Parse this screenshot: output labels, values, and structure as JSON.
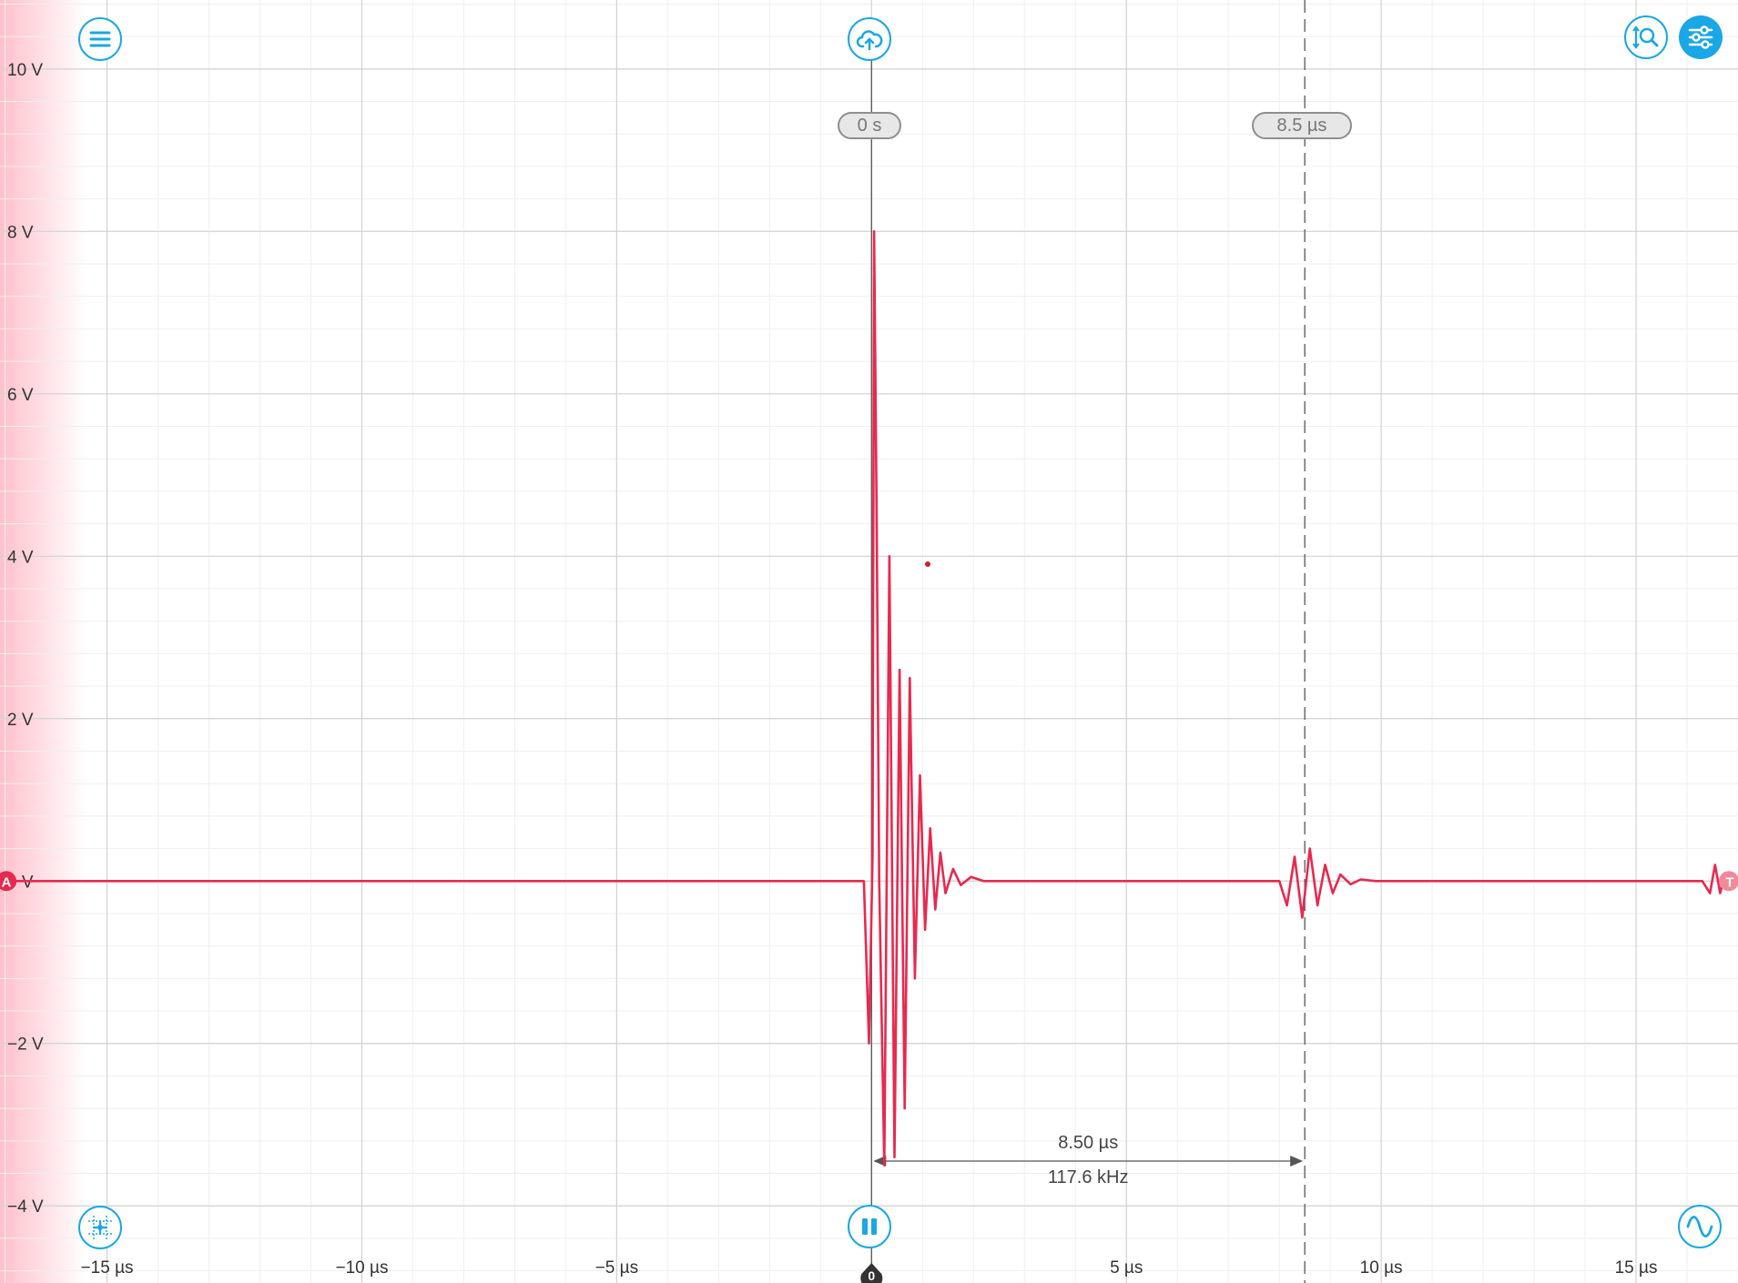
{
  "colors": {
    "accent": "#1aa7e6",
    "trace": "#e8294f",
    "grid_major": "#d2d2d2",
    "grid_minor": "#efefef",
    "label": "#333333"
  },
  "toolbar": {
    "menu_icon": "menu-icon",
    "upload_icon": "cloud-upload-icon",
    "zoom_icon": "vertical-zoom-icon",
    "settings_icon": "sliders-icon",
    "crosshair_icon": "crosshair-icon",
    "pause_icon": "pause-icon",
    "waveform_icon": "sine-wave-icon"
  },
  "cursors": {
    "cursor1_label": "0 s",
    "cursor2_label": "8.5 µs"
  },
  "measurement": {
    "delta_time": "8.50 µs",
    "frequency": "117.6 kHz"
  },
  "markers": {
    "channel_marker": "A",
    "trigger_level_marker": "T",
    "trigger_time_marker": "0"
  },
  "chart_data": {
    "type": "line",
    "y_ticks": [
      {
        "value": 10,
        "label": "10 V"
      },
      {
        "value": 8,
        "label": "8 V"
      },
      {
        "value": 6,
        "label": "6 V"
      },
      {
        "value": 4,
        "label": "4 V"
      },
      {
        "value": 2,
        "label": "2 V"
      },
      {
        "value": 0,
        "label": "0 V"
      },
      {
        "value": -2,
        "label": "−2 V"
      },
      {
        "value": -4,
        "label": "−4 V"
      }
    ],
    "x_ticks": [
      {
        "value": -15,
        "label": "−15 µs"
      },
      {
        "value": -10,
        "label": "−10 µs"
      },
      {
        "value": -5,
        "label": "−5 µs"
      },
      {
        "value": 5,
        "label": "5 µs"
      },
      {
        "value": 10,
        "label": "10 µs"
      },
      {
        "value": 15,
        "label": "15 µs"
      }
    ],
    "xlim": [
      -17.1,
      17.0
    ],
    "ylim": [
      -4.95,
      10.85
    ],
    "grid": true,
    "cursors_us": [
      0,
      8.5
    ],
    "series": [
      {
        "x": [
          -17.1,
          -0.15,
          -0.05,
          0.02,
          0.05,
          0.1,
          0.15,
          0.25,
          0.35,
          0.45,
          0.55,
          0.65,
          0.75,
          0.85,
          0.95,
          1.05,
          1.15,
          1.25,
          1.35,
          1.45,
          1.6,
          1.75,
          1.95,
          2.2,
          8.0,
          8.15,
          8.3,
          8.45,
          8.6,
          8.75,
          8.9,
          9.05,
          9.2,
          9.4,
          9.6,
          9.9,
          16.3,
          16.45,
          16.55,
          16.65,
          16.75,
          16.85,
          17.0
        ],
        "y": [
          0.0,
          0.0,
          -2.0,
          0.3,
          8.0,
          4.5,
          0.0,
          -3.5,
          4.0,
          -3.4,
          2.6,
          -2.8,
          2.5,
          -1.2,
          1.3,
          -0.6,
          0.65,
          -0.35,
          0.35,
          -0.15,
          0.15,
          -0.05,
          0.05,
          0.0,
          0.0,
          -0.3,
          0.3,
          -0.45,
          0.4,
          -0.3,
          0.2,
          -0.15,
          0.08,
          -0.04,
          0.02,
          0.0,
          0.0,
          -0.15,
          0.2,
          -0.15,
          0.1,
          -0.05,
          0.0
        ]
      }
    ]
  }
}
